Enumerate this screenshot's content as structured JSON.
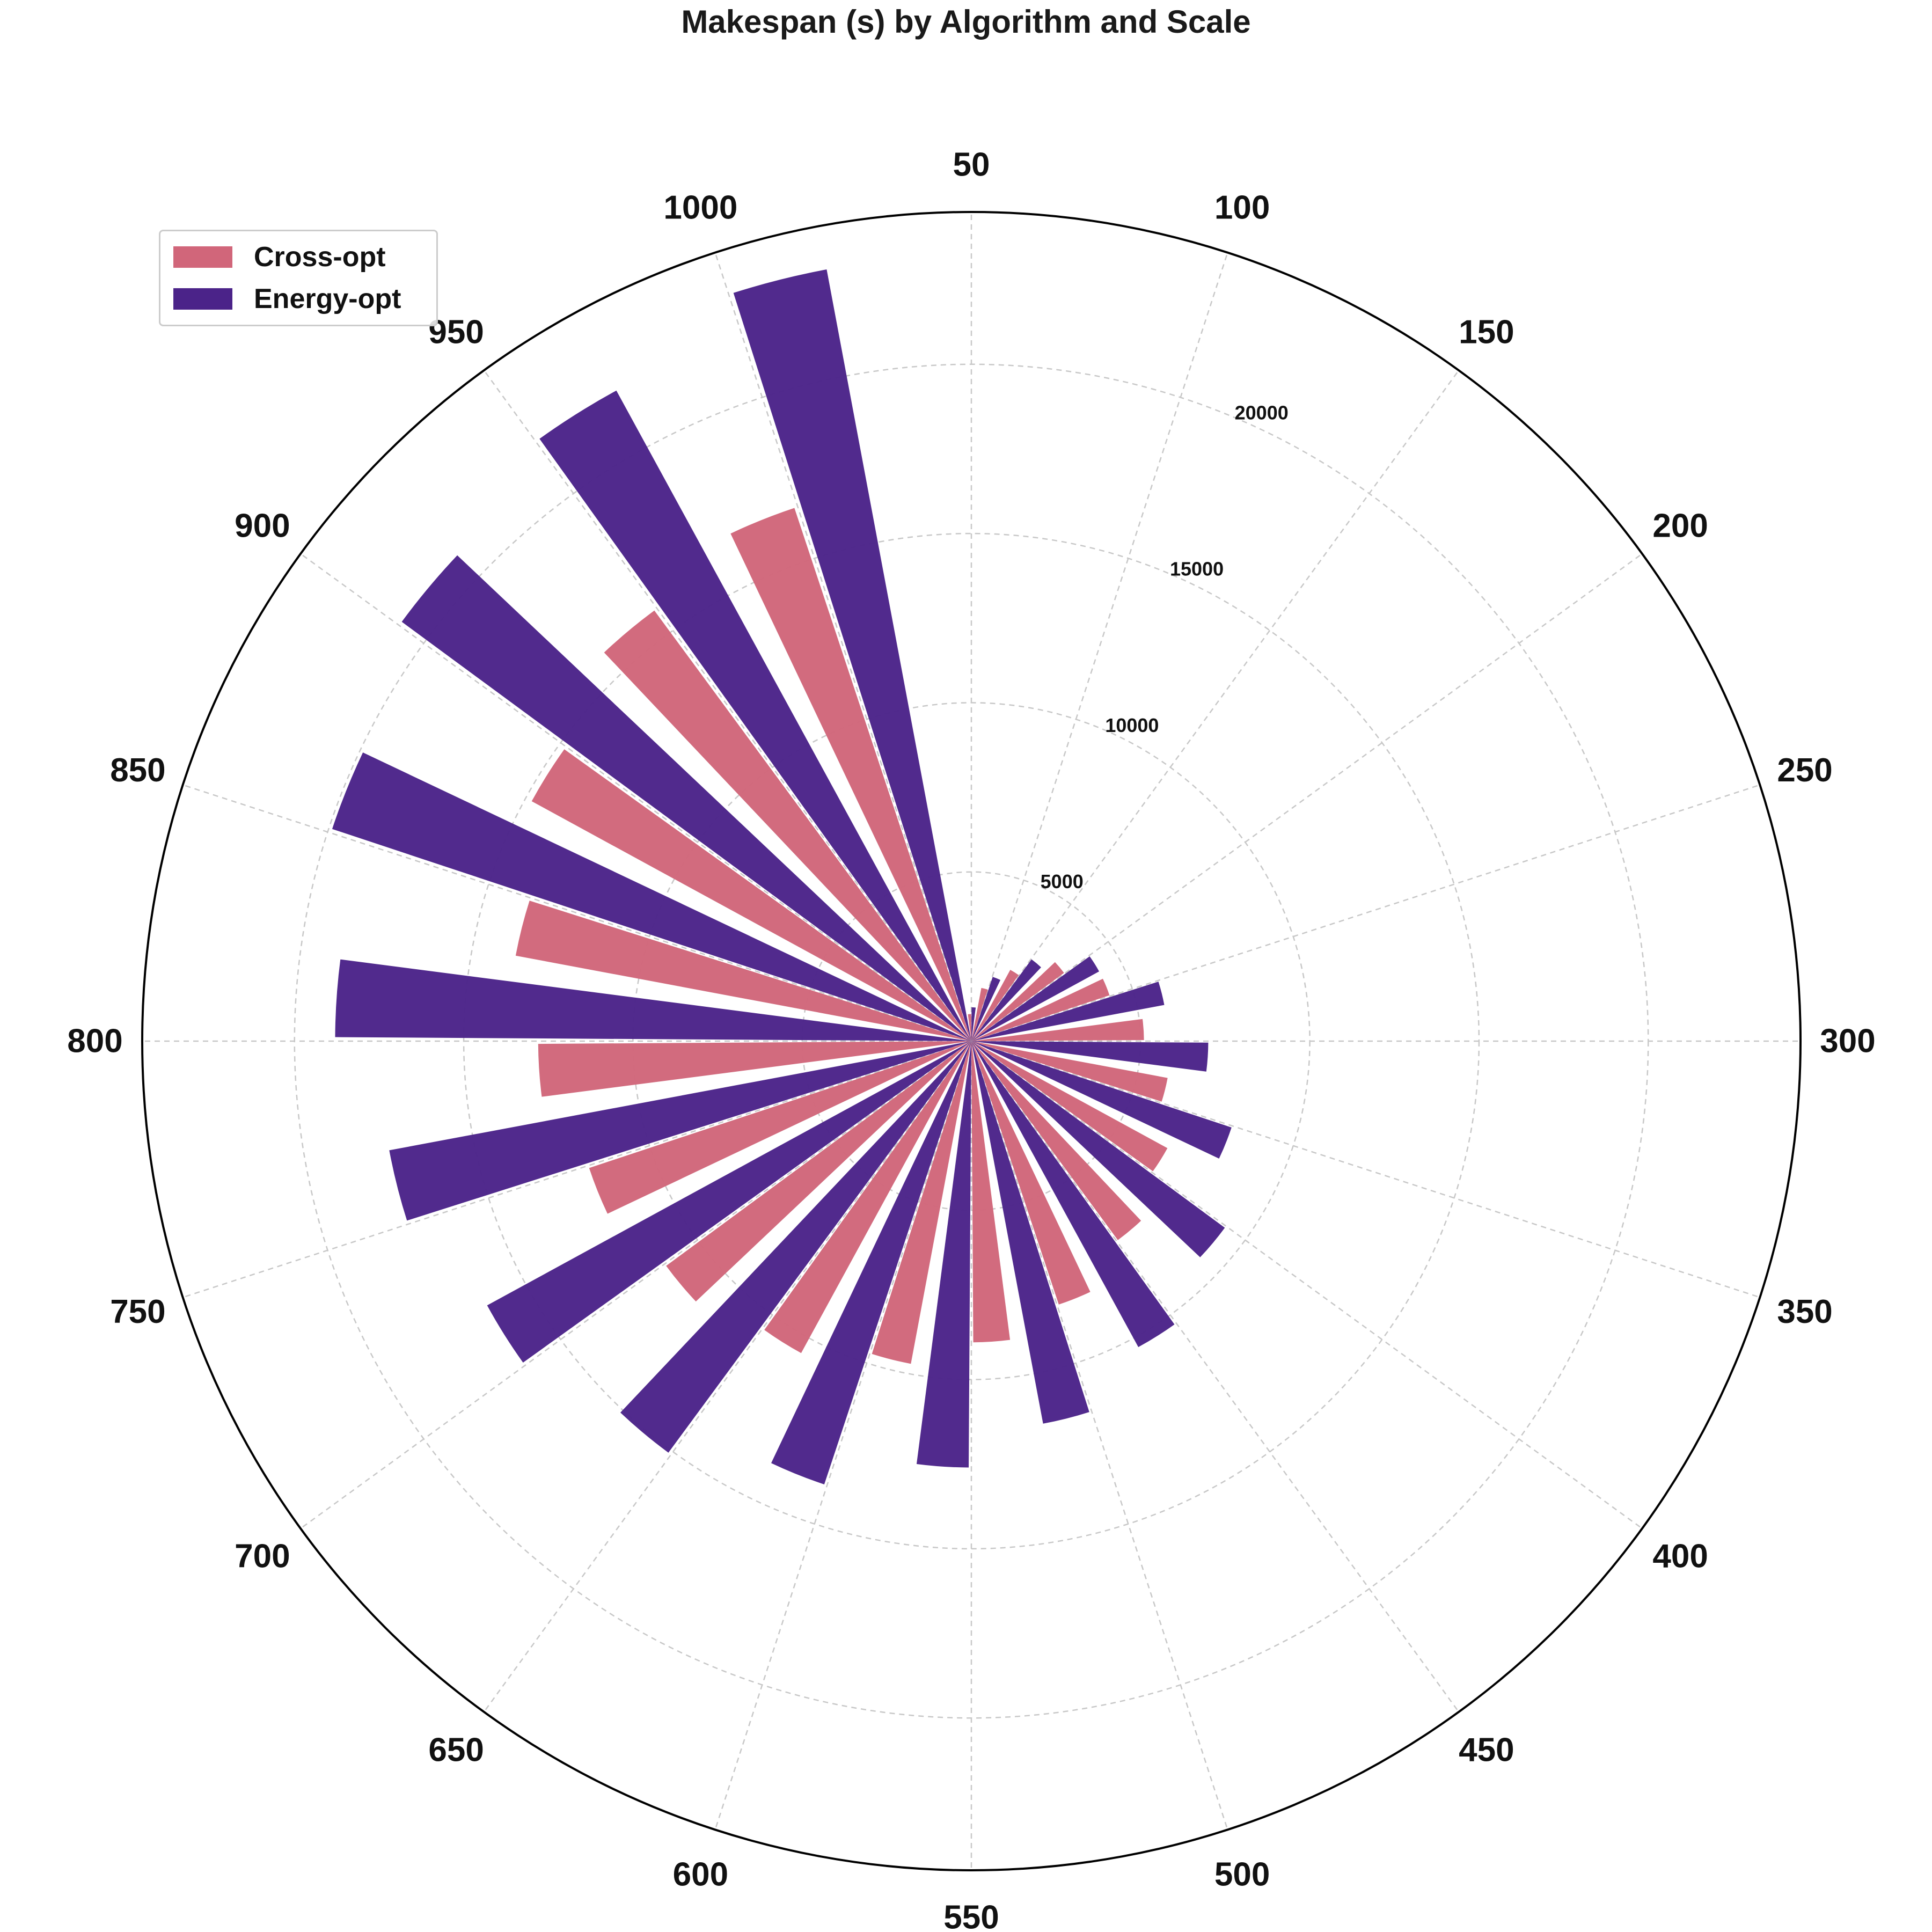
{
  "chart_data": {
    "type": "bar",
    "projection": "polar",
    "title": "Makespan (s) by Algorithm and Scale",
    "categories": [
      "50",
      "100",
      "150",
      "200",
      "250",
      "300",
      "350",
      "400",
      "450",
      "500",
      "550",
      "600",
      "650",
      "700",
      "750",
      "800",
      "850",
      "900",
      "950",
      "1000"
    ],
    "series": [
      {
        "name": "Cross-opt",
        "color": "#d1667a",
        "values": [
          800,
          1600,
          2400,
          3400,
          4300,
          5100,
          5900,
          6600,
          7300,
          8200,
          8900,
          9700,
          10500,
          11200,
          11900,
          12800,
          13700,
          14800,
          15800,
          16600
        ]
      },
      {
        "name": "Energy-opt",
        "color": "#4b2389",
        "values": [
          1000,
          2000,
          3000,
          4300,
          5800,
          7000,
          8100,
          9300,
          10300,
          11500,
          12600,
          13800,
          15100,
          16300,
          17500,
          18800,
          19900,
          20900,
          21900,
          23200
        ]
      }
    ],
    "rlim": [
      0,
      24500
    ],
    "radial_ticks": [
      "5000",
      "10000",
      "15000",
      "20000"
    ],
    "radial_tick_values": [
      5000,
      10000,
      15000,
      20000
    ],
    "grid": true,
    "legend": "top-left"
  }
}
